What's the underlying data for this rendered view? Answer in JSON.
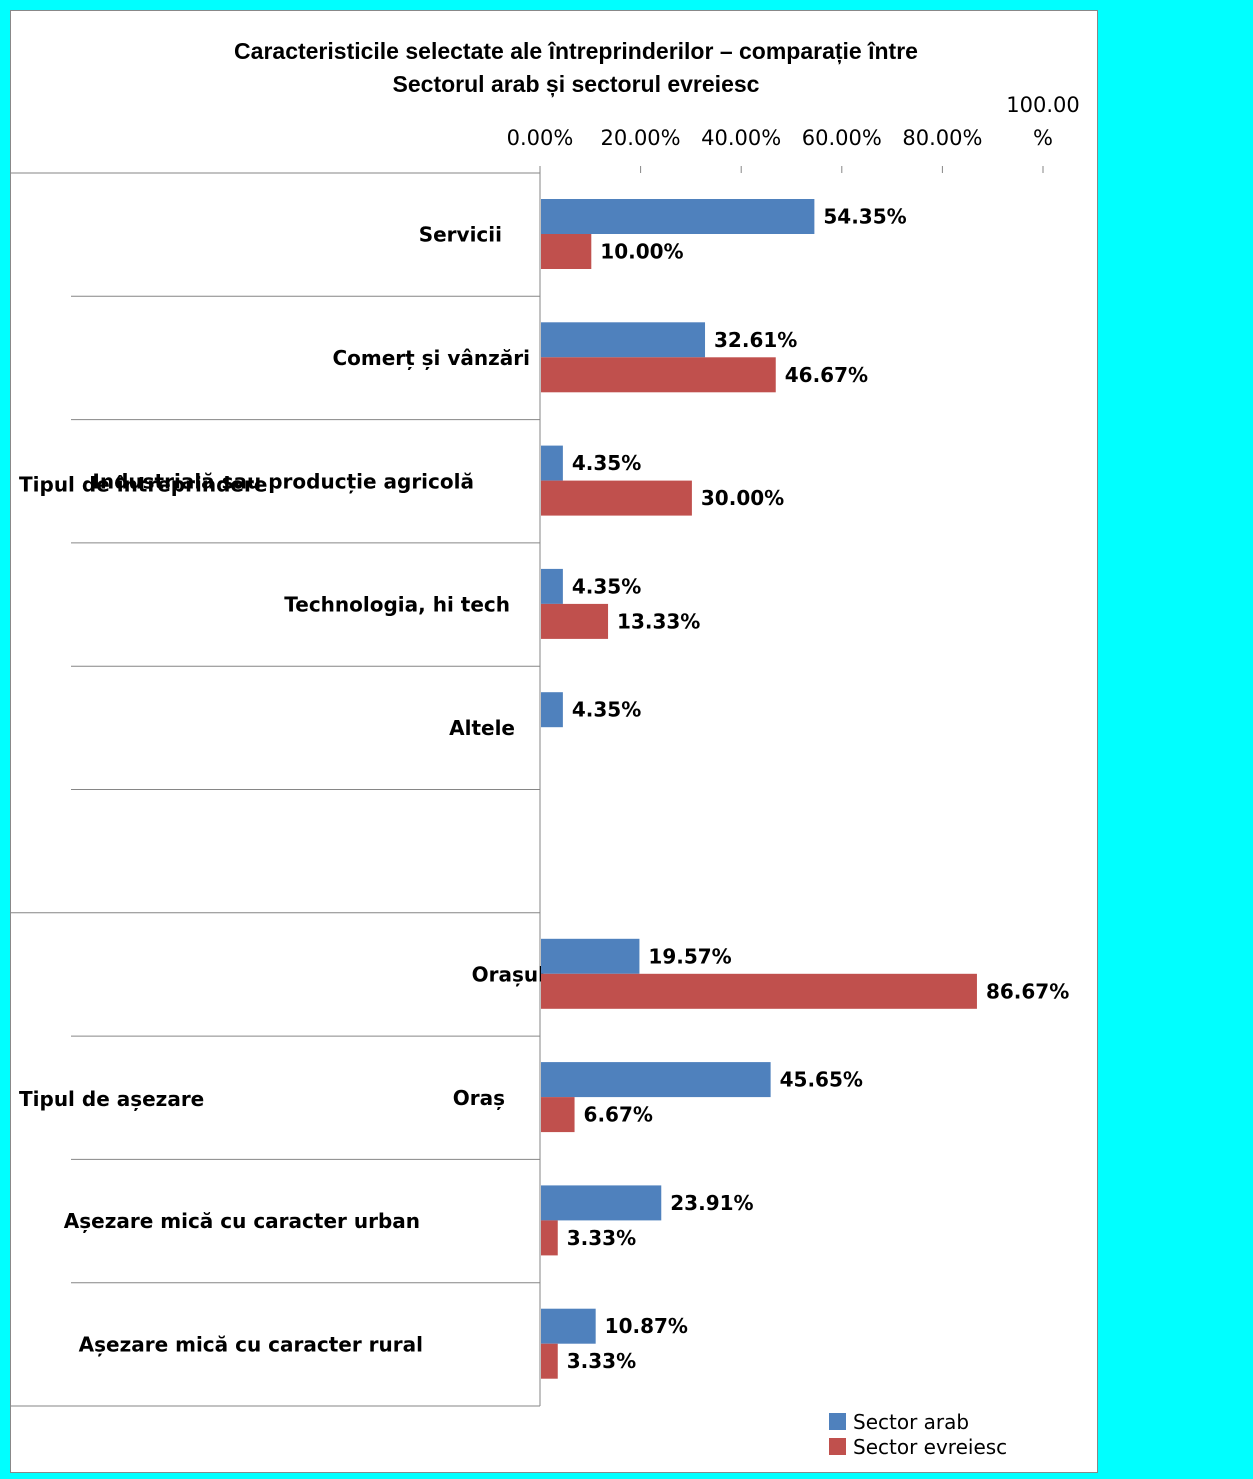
{
  "chart_data": {
    "type": "bar",
    "orientation": "horizontal",
    "title_lines": [
      "Caracteristicile selectate ale întreprinderilor – comparație între",
      "Sectorul arab și sectorul evreiesc"
    ],
    "x_ticks": [
      "0.00%",
      "20.00%",
      "40.00%",
      "60.00%",
      "80.00%"
    ],
    "x_tick_last": [
      "100.00",
      "%"
    ],
    "xlim": [
      0,
      100
    ],
    "groups": [
      {
        "name": "Tipul de întreprindere",
        "categories": [
          "Servicii",
          "Comerț și vânzări",
          "Industrială sau producție agricolă",
          "Technologia, hi tech",
          "Altele"
        ]
      },
      {
        "name": "Tipul de așezare",
        "categories": [
          "Orașul",
          "Oraș",
          "Așezare mică cu caracter urban",
          "Așezare mică cu caracter rural"
        ]
      }
    ],
    "series": [
      {
        "name": "Sector arab",
        "color": "#4F81BD",
        "values": [
          54.35,
          32.61,
          4.35,
          4.35,
          4.35,
          19.57,
          45.65,
          23.91,
          10.87
        ],
        "labels": [
          "54.35%",
          "32.61%",
          "4.35%",
          "4.35%",
          "4.35%",
          "19.57%",
          "45.65%",
          "23.91%",
          "10.87%"
        ]
      },
      {
        "name": "Sector evreiesc",
        "color": "#C0504D",
        "values": [
          10.0,
          46.67,
          30.0,
          13.33,
          null,
          86.67,
          6.67,
          3.33,
          3.33
        ],
        "labels": [
          "10.00%",
          "46.67%",
          "30.00%",
          "13.33%",
          "",
          "86.67%",
          "6.67%",
          "3.33%",
          "3.33%"
        ]
      }
    ],
    "legend_position": "bottom-right"
  }
}
